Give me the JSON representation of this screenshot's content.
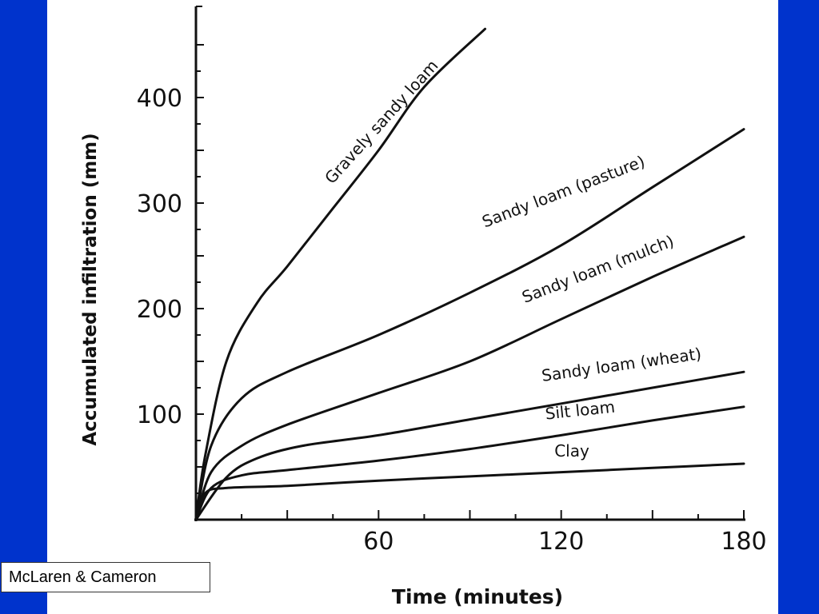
{
  "colors": {
    "frame": "#0033cc",
    "panel": "#ffffff",
    "ink": "#111111"
  },
  "credit": {
    "text": "McLaren & Cameron"
  },
  "chart_data": {
    "type": "line",
    "title": "",
    "xlabel": "Time (minutes)",
    "ylabel": "Accumulated infiltration (mm)",
    "xlim": [
      0,
      180
    ],
    "ylim": [
      0,
      480
    ],
    "x_ticks": [
      60,
      120,
      180
    ],
    "y_ticks": [
      100,
      200,
      300,
      400
    ],
    "grid": false,
    "legend": "none",
    "series": [
      {
        "name": "Gravely sandy loam",
        "x": [
          0,
          3,
          10,
          20,
          30,
          45,
          60,
          75,
          95
        ],
        "y": [
          0,
          60,
          150,
          205,
          240,
          295,
          350,
          410,
          465
        ]
      },
      {
        "name": "Sandy loam (pasture)",
        "x": [
          0,
          5,
          15,
          30,
          60,
          90,
          120,
          150,
          180
        ],
        "y": [
          0,
          70,
          115,
          140,
          175,
          215,
          260,
          315,
          370
        ]
      },
      {
        "name": "Sandy loam (mulch)",
        "x": [
          0,
          5,
          15,
          30,
          60,
          90,
          120,
          150,
          180
        ],
        "y": [
          0,
          45,
          70,
          90,
          120,
          150,
          190,
          230,
          268
        ]
      },
      {
        "name": "Sandy loam (wheat)",
        "x": [
          0,
          10,
          20,
          35,
          60,
          90,
          120,
          150,
          180
        ],
        "y": [
          0,
          40,
          58,
          70,
          80,
          95,
          110,
          125,
          140
        ]
      },
      {
        "name": "Silt loam",
        "x": [
          0,
          5,
          15,
          30,
          60,
          90,
          120,
          150,
          180
        ],
        "y": [
          0,
          30,
          42,
          47,
          56,
          67,
          80,
          94,
          107
        ]
      },
      {
        "name": "Clay",
        "x": [
          0,
          3,
          10,
          30,
          60,
          90,
          120,
          150,
          180
        ],
        "y": [
          0,
          25,
          30,
          32,
          37,
          41,
          45,
          49,
          53
        ]
      }
    ]
  }
}
